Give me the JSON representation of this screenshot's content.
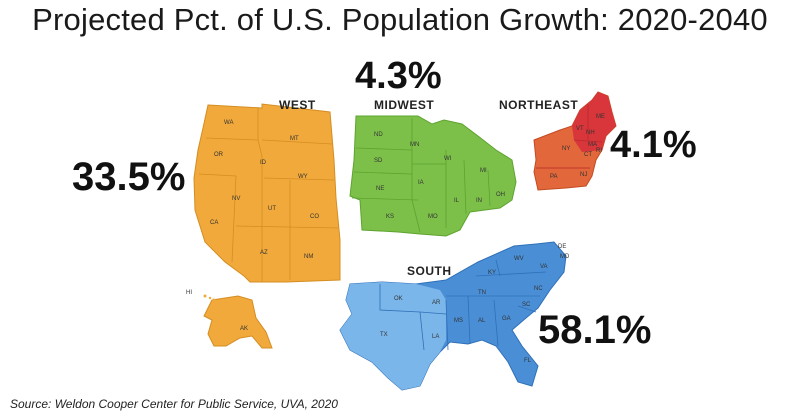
{
  "title": "Projected Pct. of U.S. Population Growth: 2020-2040",
  "regions": {
    "west": {
      "label": "WEST",
      "pct": "33.5%",
      "color": "#f0a93a"
    },
    "midwest": {
      "label": "MIDWEST",
      "pct": "4.3%",
      "color": "#7cc04a"
    },
    "northeast": {
      "label": "NORTHEAST",
      "pct": "4.1%",
      "color": "#e2673a"
    },
    "south": {
      "label": "SOUTH",
      "pct": "58.1%",
      "color": "#4a8fd6"
    }
  },
  "states": {
    "west": [
      "WA",
      "OR",
      "CA",
      "MT",
      "ID",
      "WY",
      "NV",
      "UT",
      "CO",
      "AZ",
      "NM",
      "AK",
      "HI"
    ],
    "midwest": [
      "ND",
      "SD",
      "NE",
      "KS",
      "MN",
      "IA",
      "MO",
      "WI",
      "IL",
      "MI",
      "IN",
      "OH"
    ],
    "northeast": [
      "ME",
      "VT",
      "NH",
      "MA",
      "RI",
      "CT",
      "NY",
      "PA",
      "NJ"
    ],
    "south": [
      "DE",
      "MD",
      "WV",
      "VA",
      "KY",
      "NC",
      "TN",
      "SC",
      "AR",
      "OK",
      "TX",
      "LA",
      "MS",
      "AL",
      "GA",
      "FL"
    ]
  },
  "source": "Source: Weldon Cooper Center for Public Service, UVA, 2020"
}
